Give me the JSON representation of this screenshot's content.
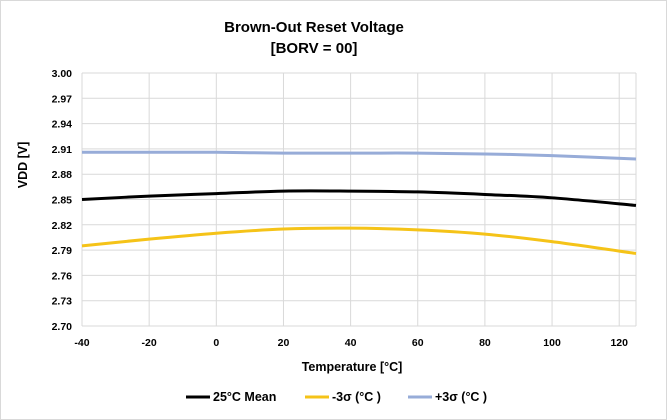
{
  "chart_data": {
    "type": "line",
    "title": "Brown-Out Reset Voltage",
    "subtitle": "[BORV = 00]",
    "xlabel": "Temperature [°C]",
    "ylabel": "VDD [V]",
    "xlim": [
      -40,
      125
    ],
    "ylim": [
      2.7,
      3.0
    ],
    "x_ticks": [
      -40,
      -20,
      0,
      20,
      40,
      60,
      80,
      100,
      120
    ],
    "y_ticks": [
      "2.70",
      "2.73",
      "2.76",
      "2.79",
      "2.82",
      "2.85",
      "2.88",
      "2.91",
      "2.94",
      "2.97",
      "3.00"
    ],
    "grid": true,
    "legend_position": "bottom",
    "x": [
      -40,
      -20,
      0,
      20,
      40,
      60,
      80,
      100,
      125
    ],
    "series": [
      {
        "name": "25°C Mean",
        "color": "#000000",
        "values": [
          2.85,
          2.854,
          2.857,
          2.86,
          2.86,
          2.859,
          2.856,
          2.852,
          2.843
        ]
      },
      {
        "name": "-3σ (°C )",
        "color": "#f5c318",
        "values": [
          2.795,
          2.803,
          2.81,
          2.815,
          2.816,
          2.814,
          2.809,
          2.8,
          2.786
        ]
      },
      {
        "name": "+3σ (°C )",
        "color": "#97acd8",
        "values": [
          2.906,
          2.906,
          2.906,
          2.905,
          2.905,
          2.905,
          2.904,
          2.902,
          2.898
        ]
      }
    ]
  }
}
